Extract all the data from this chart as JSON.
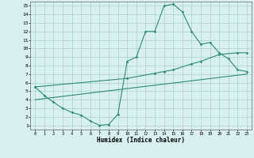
{
  "line1_x": [
    0,
    1,
    2,
    3,
    4,
    5,
    6,
    7,
    8,
    9,
    10,
    11,
    12,
    13,
    14,
    15,
    16,
    17,
    18,
    19,
    20,
    21,
    22,
    23
  ],
  "line1_y": [
    5.5,
    4.5,
    3.7,
    3.0,
    2.5,
    2.2,
    1.5,
    1.0,
    1.1,
    2.3,
    8.5,
    9.0,
    12.0,
    12.0,
    15.0,
    15.2,
    14.3,
    12.0,
    10.5,
    10.7,
    9.5,
    8.8,
    7.5,
    7.3
  ],
  "line2_x": [
    0,
    10,
    13,
    14,
    15,
    17,
    18,
    20,
    22,
    23
  ],
  "line2_y": [
    5.5,
    6.5,
    7.1,
    7.3,
    7.5,
    8.2,
    8.5,
    9.3,
    9.5,
    9.5
  ],
  "line3_x": [
    0,
    23
  ],
  "line3_y": [
    4.0,
    7.0
  ],
  "line_color": "#2e8b74",
  "bg_color": "#d8f0f0",
  "grid_color": "#a8cece",
  "xlabel": "Humidex (Indice chaleur)",
  "xlim": [
    -0.5,
    23.5
  ],
  "ylim": [
    0.5,
    15.5
  ],
  "yticks": [
    1,
    2,
    3,
    4,
    5,
    6,
    7,
    8,
    9,
    10,
    11,
    12,
    13,
    14,
    15
  ],
  "xticks": [
    0,
    1,
    2,
    3,
    4,
    5,
    6,
    7,
    8,
    9,
    10,
    11,
    12,
    13,
    14,
    15,
    16,
    17,
    18,
    19,
    20,
    21,
    22,
    23
  ]
}
